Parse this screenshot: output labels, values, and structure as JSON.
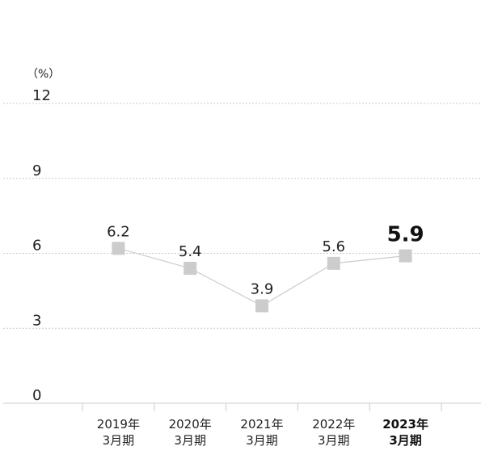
{
  "chart_data": {
    "type": "line",
    "unit": "（%）",
    "categories": [
      {
        "line1": "2019年",
        "line2": "3月期"
      },
      {
        "line1": "2020年",
        "line2": "3月期"
      },
      {
        "line1": "2021年",
        "line2": "3月期"
      },
      {
        "line1": "2022年",
        "line2": "3月期"
      },
      {
        "line1": "2023年",
        "line2": "3月期"
      }
    ],
    "values": [
      6.2,
      5.4,
      3.9,
      5.6,
      5.9
    ],
    "value_labels": [
      "6.2",
      "5.4",
      "3.9",
      "5.6",
      "5.9"
    ],
    "highlight_index": 4,
    "ylim": [
      0,
      12
    ],
    "yticks": [
      0,
      3,
      6,
      9,
      12
    ],
    "grid": true,
    "colors": {
      "marker": "#cccccc",
      "line": "#cccccc",
      "grid": "#cccccc",
      "axis": "#cccccc",
      "text": "#222222",
      "highlight_text": "#111111"
    }
  }
}
